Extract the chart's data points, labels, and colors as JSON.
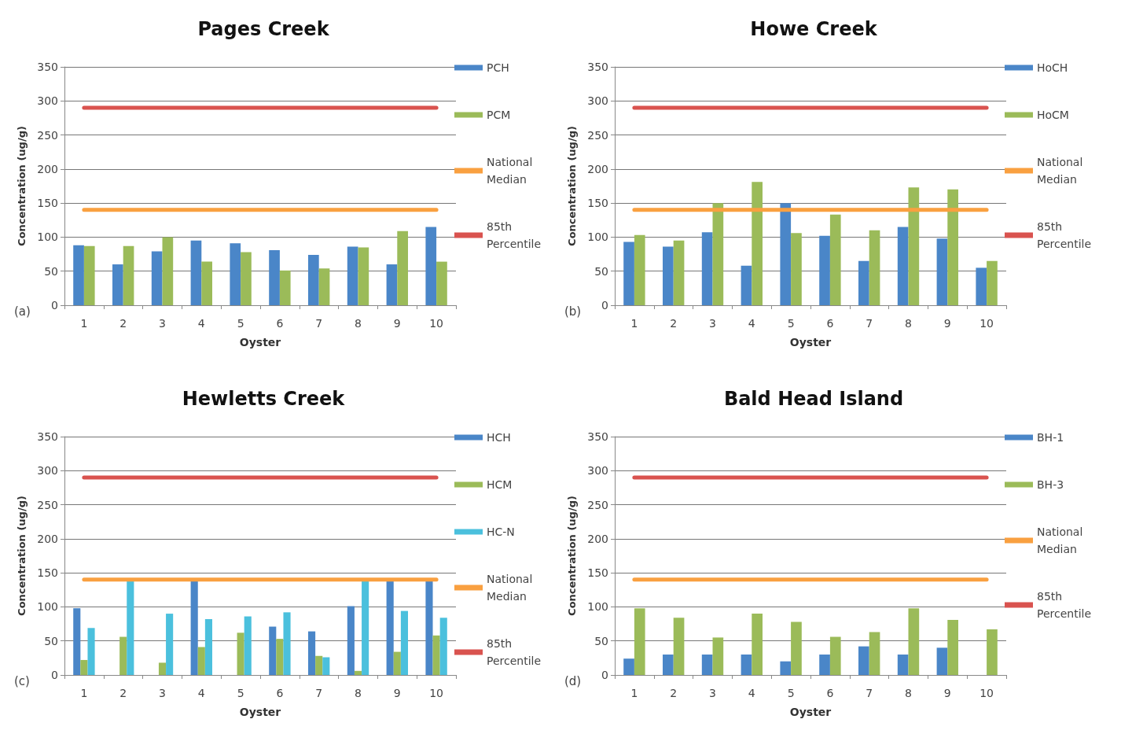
{
  "chart_data": [
    {
      "type": "bar",
      "title": "Pages Creek",
      "xlabel": "Oyster",
      "ylabel": "Concentration (ug/g)",
      "categories": [
        "1",
        "2",
        "3",
        "4",
        "5",
        "6",
        "7",
        "8",
        "9",
        "10"
      ],
      "ylim": [
        0,
        350
      ],
      "yticks": [
        0,
        50,
        100,
        150,
        200,
        250,
        300,
        350
      ],
      "grid": "y",
      "legend": "right",
      "annotations": [
        "(a)"
      ],
      "series": [
        {
          "name": "PCH",
          "color": "#4a86c8",
          "values": [
            88,
            60,
            79,
            95,
            91,
            81,
            74,
            86,
            60,
            115
          ]
        },
        {
          "name": "PCM",
          "color": "#9bbb59",
          "values": [
            87,
            87,
            100,
            64,
            78,
            51,
            54,
            85,
            109,
            64
          ]
        },
        {
          "name": "National Median",
          "type": "line",
          "color": "#f9a040",
          "values": [
            140,
            140,
            140,
            140,
            140,
            140,
            140,
            140,
            140,
            140
          ]
        },
        {
          "name": "85th Percentile",
          "type": "line",
          "color": "#d9534f",
          "values": [
            290,
            290,
            290,
            290,
            290,
            290,
            290,
            290,
            290,
            290
          ]
        }
      ]
    },
    {
      "type": "bar",
      "title": "Howe Creek",
      "xlabel": "Oyster",
      "ylabel": "Concentration (ug/g)",
      "categories": [
        "1",
        "2",
        "3",
        "4",
        "5",
        "6",
        "7",
        "8",
        "9",
        "10"
      ],
      "ylim": [
        0,
        350
      ],
      "yticks": [
        0,
        50,
        100,
        150,
        200,
        250,
        300,
        350
      ],
      "grid": "y",
      "legend": "right",
      "annotations": [
        "(b)"
      ],
      "series": [
        {
          "name": "HoCH",
          "color": "#4a86c8",
          "values": [
            93,
            86,
            107,
            58,
            150,
            102,
            65,
            115,
            98,
            55
          ]
        },
        {
          "name": "HoCM",
          "color": "#9bbb59",
          "values": [
            103,
            95,
            150,
            181,
            106,
            133,
            110,
            173,
            170,
            65
          ]
        },
        {
          "name": "National Median",
          "type": "line",
          "color": "#f9a040",
          "values": [
            140,
            140,
            140,
            140,
            140,
            140,
            140,
            140,
            140,
            140
          ]
        },
        {
          "name": "85th Percentile",
          "type": "line",
          "color": "#d9534f",
          "values": [
            290,
            290,
            290,
            290,
            290,
            290,
            290,
            290,
            290,
            290
          ]
        }
      ]
    },
    {
      "type": "bar",
      "title": "Hewletts Creek",
      "xlabel": "Oyster",
      "ylabel": "Concentration (ug/g)",
      "categories": [
        "1",
        "2",
        "3",
        "4",
        "5",
        "6",
        "7",
        "8",
        "9",
        "10"
      ],
      "ylim": [
        0,
        350
      ],
      "yticks": [
        0,
        50,
        100,
        150,
        200,
        250,
        300,
        350
      ],
      "grid": "y",
      "legend": "right",
      "annotations": [
        "(c)"
      ],
      "series": [
        {
          "name": "HCH",
          "color": "#4a86c8",
          "values": [
            98,
            null,
            null,
            140,
            null,
            71,
            64,
            101,
            140,
            140
          ]
        },
        {
          "name": "HCM",
          "color": "#9bbb59",
          "values": [
            22,
            56,
            18,
            41,
            62,
            53,
            28,
            6,
            34,
            58
          ]
        },
        {
          "name": "HC-N",
          "color": "#4bc0dd",
          "values": [
            69,
            140,
            90,
            82,
            86,
            92,
            26,
            140,
            94,
            84
          ]
        },
        {
          "name": "National Median",
          "type": "line",
          "color": "#f9a040",
          "values": [
            140,
            140,
            140,
            140,
            140,
            140,
            140,
            140,
            140,
            140
          ]
        },
        {
          "name": "85th Percentile",
          "type": "line",
          "color": "#d9534f",
          "values": [
            290,
            290,
            290,
            290,
            290,
            290,
            290,
            290,
            290,
            290
          ]
        }
      ]
    },
    {
      "type": "bar",
      "title": "Bald Head Island",
      "xlabel": "Oyster",
      "ylabel": "Concentration (ug/g)",
      "categories": [
        "1",
        "2",
        "3",
        "4",
        "5",
        "6",
        "7",
        "8",
        "9",
        "10"
      ],
      "ylim": [
        0,
        350
      ],
      "yticks": [
        0,
        50,
        100,
        150,
        200,
        250,
        300,
        350
      ],
      "grid": "y",
      "legend": "right",
      "annotations": [
        "(d)"
      ],
      "series": [
        {
          "name": "BH-1",
          "color": "#4a86c8",
          "values": [
            24,
            30,
            30,
            30,
            20,
            30,
            42,
            30,
            40,
            null
          ]
        },
        {
          "name": "BH-3",
          "color": "#9bbb59",
          "values": [
            98,
            84,
            55,
            90,
            78,
            56,
            63,
            98,
            81,
            67
          ]
        },
        {
          "name": "National Median",
          "type": "line",
          "color": "#f9a040",
          "values": [
            140,
            140,
            140,
            140,
            140,
            140,
            140,
            140,
            140,
            140
          ]
        },
        {
          "name": "85th Percentile",
          "type": "line",
          "color": "#d9534f",
          "values": [
            290,
            290,
            290,
            290,
            290,
            290,
            290,
            290,
            290,
            290
          ]
        }
      ]
    }
  ]
}
